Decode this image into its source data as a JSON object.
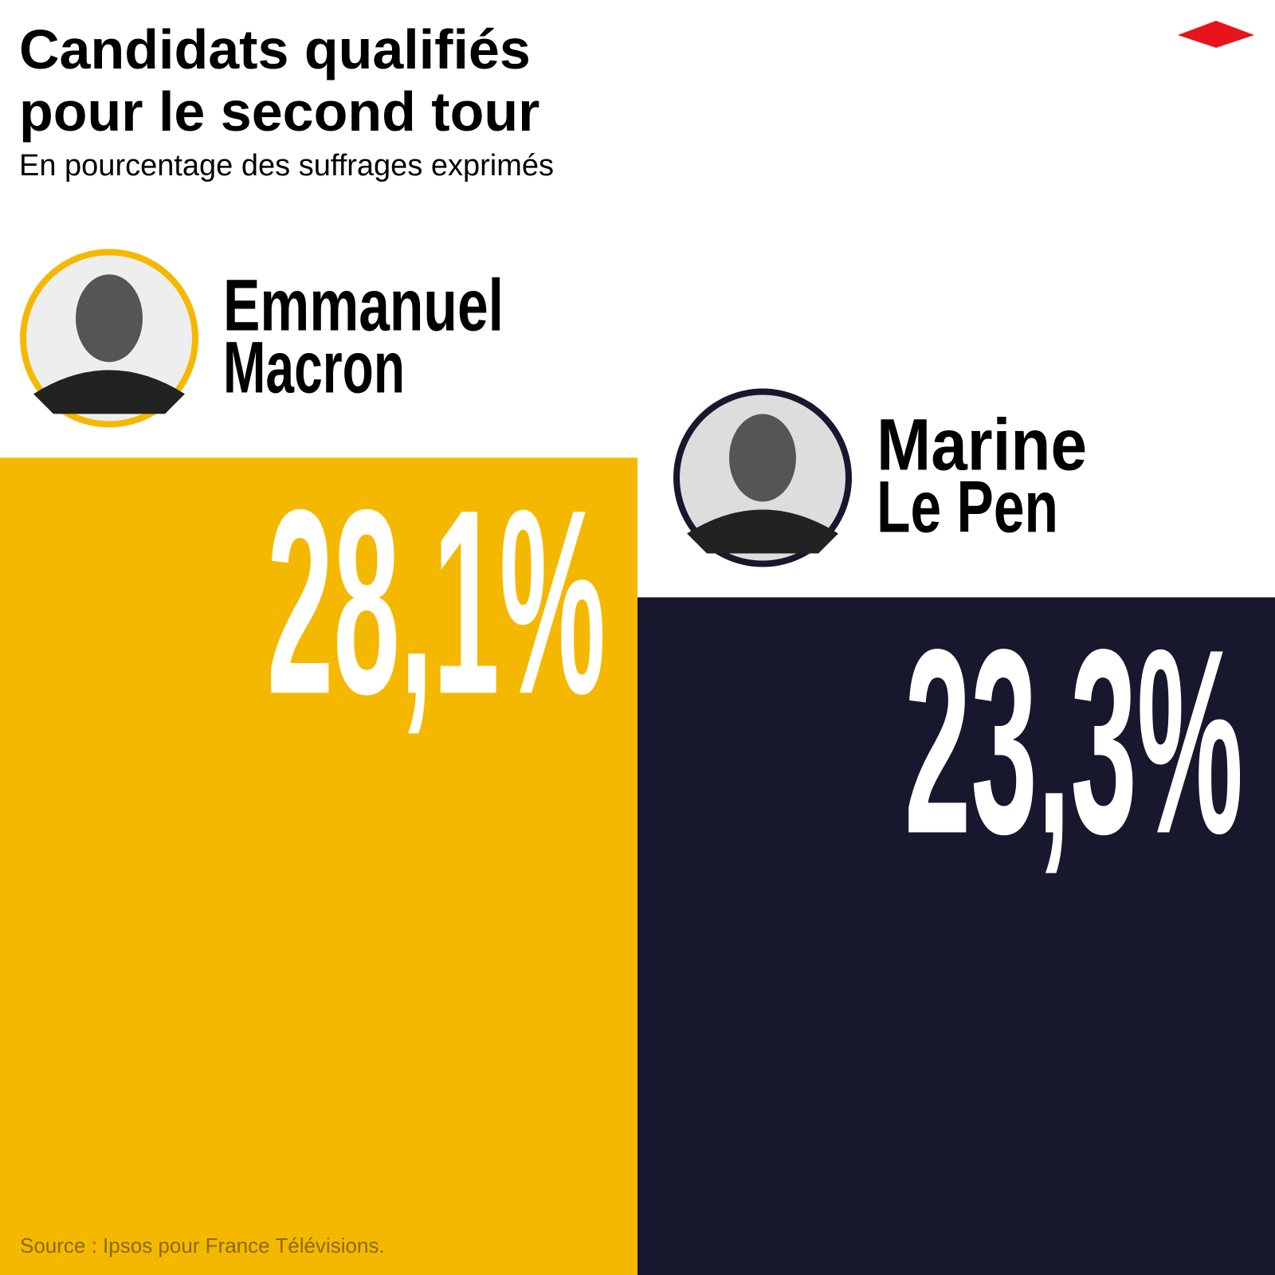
{
  "chart_data": {
    "type": "bar",
    "title": "Candidats qualifiés pour le second tour",
    "subtitle": "En pourcentage des suffrages exprimés",
    "categories": [
      "Emmanuel Macron",
      "Marine Le Pen"
    ],
    "values": [
      28.1,
      23.3
    ],
    "value_labels": [
      "28,1%",
      "23,3%"
    ],
    "colors": [
      "#f5b800",
      "#17172e"
    ],
    "source": "Source : Ipsos pour France Télévisions."
  }
}
